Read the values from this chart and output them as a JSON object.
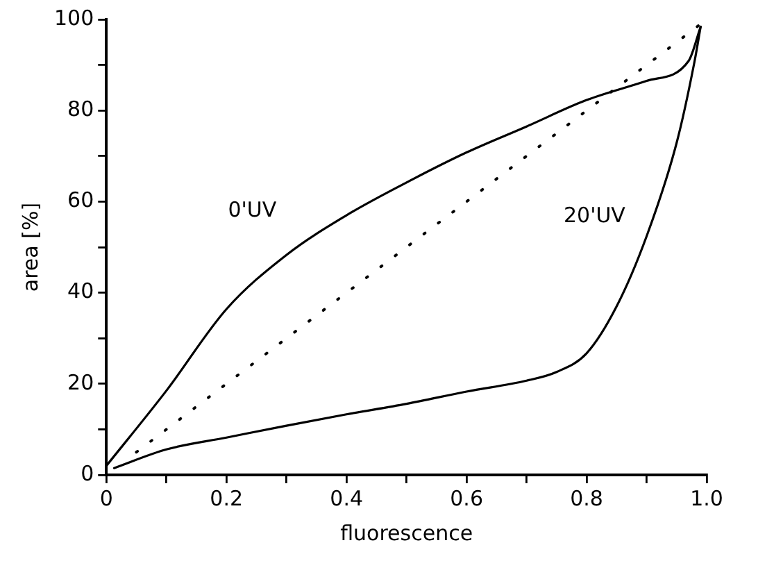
{
  "chart_data": {
    "type": "line",
    "xlabel": "fluorescence",
    "ylabel": "area [%]",
    "xlim": [
      0,
      1
    ],
    "ylim": [
      0,
      100
    ],
    "xticks": [
      0,
      {
        "value": 0.1,
        "label": null
      },
      0.2,
      {
        "value": 0.3,
        "label": null
      },
      0.4,
      {
        "value": 0.5,
        "label": null
      },
      0.6,
      {
        "value": 0.7,
        "label": null
      },
      0.8,
      {
        "value": 0.9,
        "label": null
      },
      {
        "value": 1,
        "label": "1.0"
      }
    ],
    "yticks": [
      0,
      {
        "value": 10,
        "label": null
      },
      20,
      {
        "value": 30,
        "label": null
      },
      40,
      {
        "value": 50,
        "label": null
      },
      60,
      {
        "value": 70,
        "label": null
      },
      80,
      {
        "value": 90,
        "label": null
      },
      100
    ],
    "grid": false,
    "legend": false,
    "marker": "none",
    "line_style": "solid",
    "series": [
      {
        "name": "0'UV",
        "color": "#000000",
        "x": [
          0,
          0.1,
          0.2,
          0.3,
          0.4,
          0.5,
          0.6,
          0.7,
          0.8,
          0.9,
          0.97,
          0.99
        ],
        "values": [
          2,
          18.5,
          36.4,
          48.3,
          57,
          64.2,
          70.8,
          76.5,
          82.3,
          86.5,
          90.9,
          98.4
        ]
      },
      {
        "name": "20'UV",
        "color": "#000000",
        "x": [
          0.013,
          0.1,
          0.2,
          0.3,
          0.4,
          0.5,
          0.6,
          0.7,
          0.75,
          0.8,
          0.85,
          0.9,
          0.95,
          0.98,
          0.99
        ],
        "values": [
          1.5,
          5.6,
          8.2,
          10.8,
          13.3,
          15.6,
          18.3,
          20.7,
          22.6,
          26.7,
          37,
          52.4,
          72.9,
          90.9,
          98.4
        ]
      },
      {
        "color": "#000000",
        "line_style": "dotted",
        "x": [
          0.05,
          0.99
        ],
        "values": [
          5,
          99
        ]
      }
    ]
  }
}
